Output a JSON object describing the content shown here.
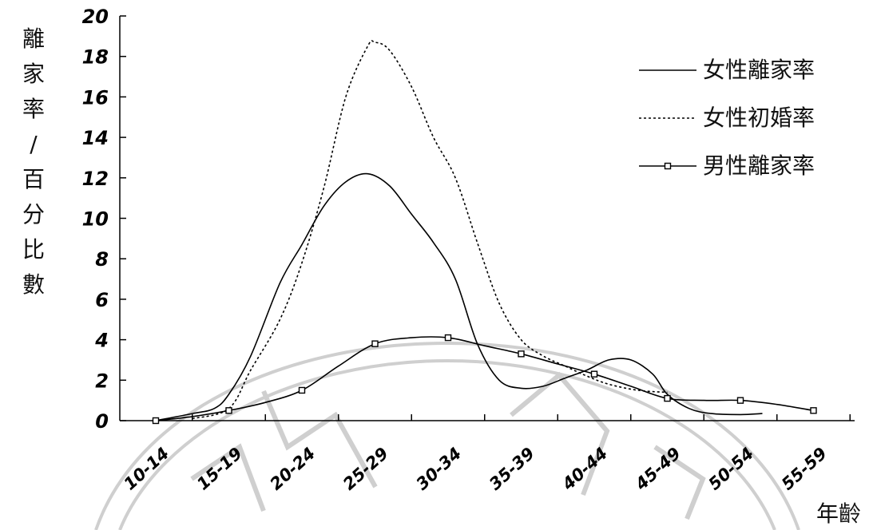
{
  "chart_data": {
    "type": "line",
    "ylabel": "離家率/百分比數",
    "xlabel": "年齡",
    "ylim": [
      0,
      20
    ],
    "yticks": [
      0,
      2,
      4,
      6,
      8,
      10,
      12,
      14,
      16,
      18,
      20
    ],
    "categories": [
      "10-14",
      "15-19",
      "20-24",
      "25-29",
      "30-34",
      "35-39",
      "40-44",
      "45-49",
      "50-54",
      "55-59"
    ],
    "legend_position": "top-right",
    "grid": false,
    "series": [
      {
        "name": "女性離家率",
        "style": "solid",
        "points": [
          [
            0,
            0
          ],
          [
            0.5,
            0.35
          ],
          [
            0.8,
            0.6
          ],
          [
            1.0,
            1.3
          ],
          [
            1.3,
            3.2
          ],
          [
            1.7,
            6.8
          ],
          [
            2.0,
            8.7
          ],
          [
            2.3,
            10.6
          ],
          [
            2.6,
            11.8
          ],
          [
            2.9,
            12.2
          ],
          [
            3.2,
            11.6
          ],
          [
            3.5,
            10.2
          ],
          [
            3.8,
            8.8
          ],
          [
            4.1,
            7.0
          ],
          [
            4.4,
            3.8
          ],
          [
            4.7,
            2.0
          ],
          [
            5.0,
            1.6
          ],
          [
            5.3,
            1.7
          ],
          [
            5.6,
            2.1
          ],
          [
            5.9,
            2.5
          ],
          [
            6.2,
            3.0
          ],
          [
            6.5,
            3.0
          ],
          [
            6.8,
            2.3
          ],
          [
            7.0,
            1.3
          ],
          [
            7.3,
            0.6
          ],
          [
            7.6,
            0.35
          ],
          [
            8.0,
            0.3
          ],
          [
            8.3,
            0.35
          ]
        ]
      },
      {
        "name": "女性初婚率",
        "style": "dotted",
        "points": [
          [
            0.5,
            0.1
          ],
          [
            1.0,
            0.6
          ],
          [
            1.3,
            2.5
          ],
          [
            1.7,
            5.0
          ],
          [
            2.0,
            7.8
          ],
          [
            2.3,
            11.5
          ],
          [
            2.6,
            16.0
          ],
          [
            2.9,
            18.5
          ],
          [
            3.0,
            18.7
          ],
          [
            3.2,
            18.3
          ],
          [
            3.5,
            16.5
          ],
          [
            3.8,
            14.0
          ],
          [
            4.1,
            12.0
          ],
          [
            4.4,
            8.8
          ],
          [
            4.7,
            5.8
          ],
          [
            5.0,
            4.0
          ],
          [
            5.3,
            3.2
          ],
          [
            5.6,
            2.7
          ],
          [
            5.9,
            2.2
          ],
          [
            6.2,
            1.8
          ],
          [
            6.6,
            1.5
          ],
          [
            7.0,
            1.4
          ]
        ]
      },
      {
        "name": "男性離家率",
        "style": "solid-square",
        "x": [
          0,
          1,
          2,
          3,
          4,
          5,
          6,
          7,
          8,
          9
        ],
        "values": [
          0.0,
          0.5,
          1.5,
          3.8,
          4.1,
          3.3,
          2.3,
          1.1,
          1.0,
          0.5
        ],
        "curve": [
          [
            0,
            0
          ],
          [
            0.5,
            0.2
          ],
          [
            1.0,
            0.5
          ],
          [
            1.5,
            0.9
          ],
          [
            2.0,
            1.5
          ],
          [
            2.5,
            2.7
          ],
          [
            3.0,
            3.8
          ],
          [
            3.5,
            4.1
          ],
          [
            4.0,
            4.1
          ],
          [
            4.5,
            3.7
          ],
          [
            5.0,
            3.3
          ],
          [
            5.5,
            2.8
          ],
          [
            6.0,
            2.3
          ],
          [
            6.5,
            1.7
          ],
          [
            7.0,
            1.1
          ],
          [
            7.5,
            1.0
          ],
          [
            8.0,
            1.0
          ],
          [
            8.5,
            0.8
          ],
          [
            9.0,
            0.5
          ]
        ]
      }
    ]
  },
  "colors": {
    "line": "#000000",
    "watermark": "#c8c8c8"
  }
}
